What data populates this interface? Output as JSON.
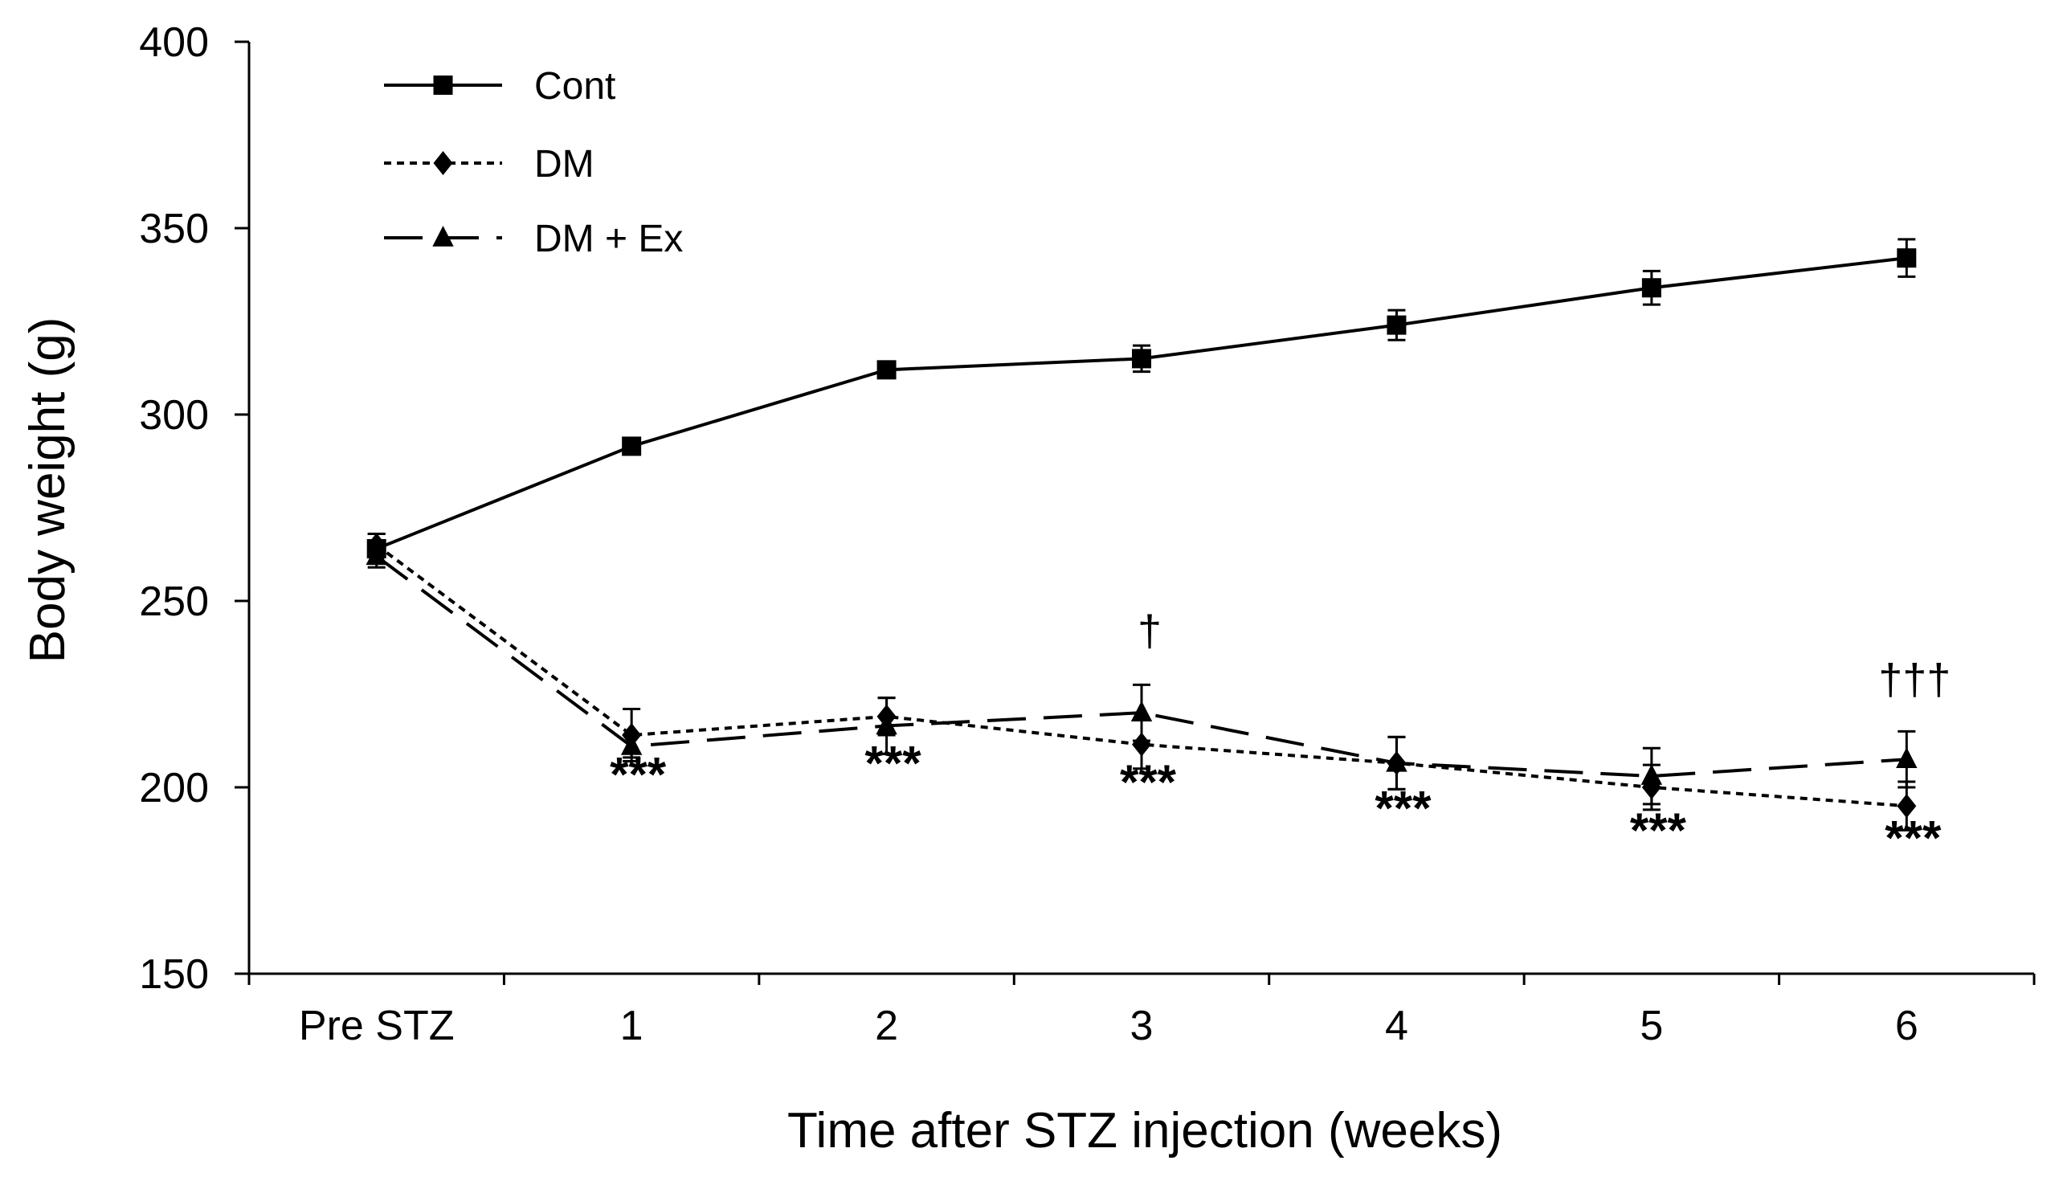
{
  "chart_data": {
    "type": "line",
    "title": "",
    "xlabel": "Time after STZ injection (weeks)",
    "ylabel": "Body weight (g)",
    "ylim": [
      150,
      400
    ],
    "yticks": [
      "150",
      "200",
      "250",
      "300",
      "350",
      "400"
    ],
    "categories": [
      "Pre STZ",
      "1",
      "2",
      "3",
      "4",
      "5",
      "6"
    ],
    "grid": false,
    "legend_position": "top-left",
    "series": [
      {
        "name": "Cont",
        "marker": "square",
        "line_style": "solid",
        "values": [
          264,
          291.5,
          312,
          315,
          324,
          334,
          342
        ],
        "errors": [
          4,
          2,
          2,
          3.5,
          4,
          4.5,
          5
        ]
      },
      {
        "name": "DM",
        "marker": "diamond",
        "line_style": "dotted",
        "values": [
          265,
          214,
          219,
          211.5,
          206.5,
          200,
          195
        ],
        "errors": [
          3,
          7,
          5,
          6.5,
          7,
          6,
          6.5
        ]
      },
      {
        "name": "DM + Ex",
        "marker": "triangle",
        "line_style": "dashed",
        "values": [
          262,
          211,
          216.5,
          220,
          206.5,
          203,
          207.5
        ],
        "errors": [
          3,
          3,
          7.5,
          7.5,
          7,
          7.5,
          7.5
        ]
      }
    ],
    "annotations": [
      {
        "text": "***",
        "category": "1",
        "y": 199
      },
      {
        "text": "***",
        "category": "2",
        "y": 202
      },
      {
        "text": "***",
        "category": "3",
        "y": 197
      },
      {
        "text": "***",
        "category": "4",
        "y": 190
      },
      {
        "text": "***",
        "category": "5",
        "y": 184
      },
      {
        "text": "***",
        "category": "6",
        "y": 182
      },
      {
        "text": "†",
        "category": "3",
        "y": 238
      },
      {
        "text": "†††",
        "category": "6",
        "y": 225
      }
    ]
  }
}
